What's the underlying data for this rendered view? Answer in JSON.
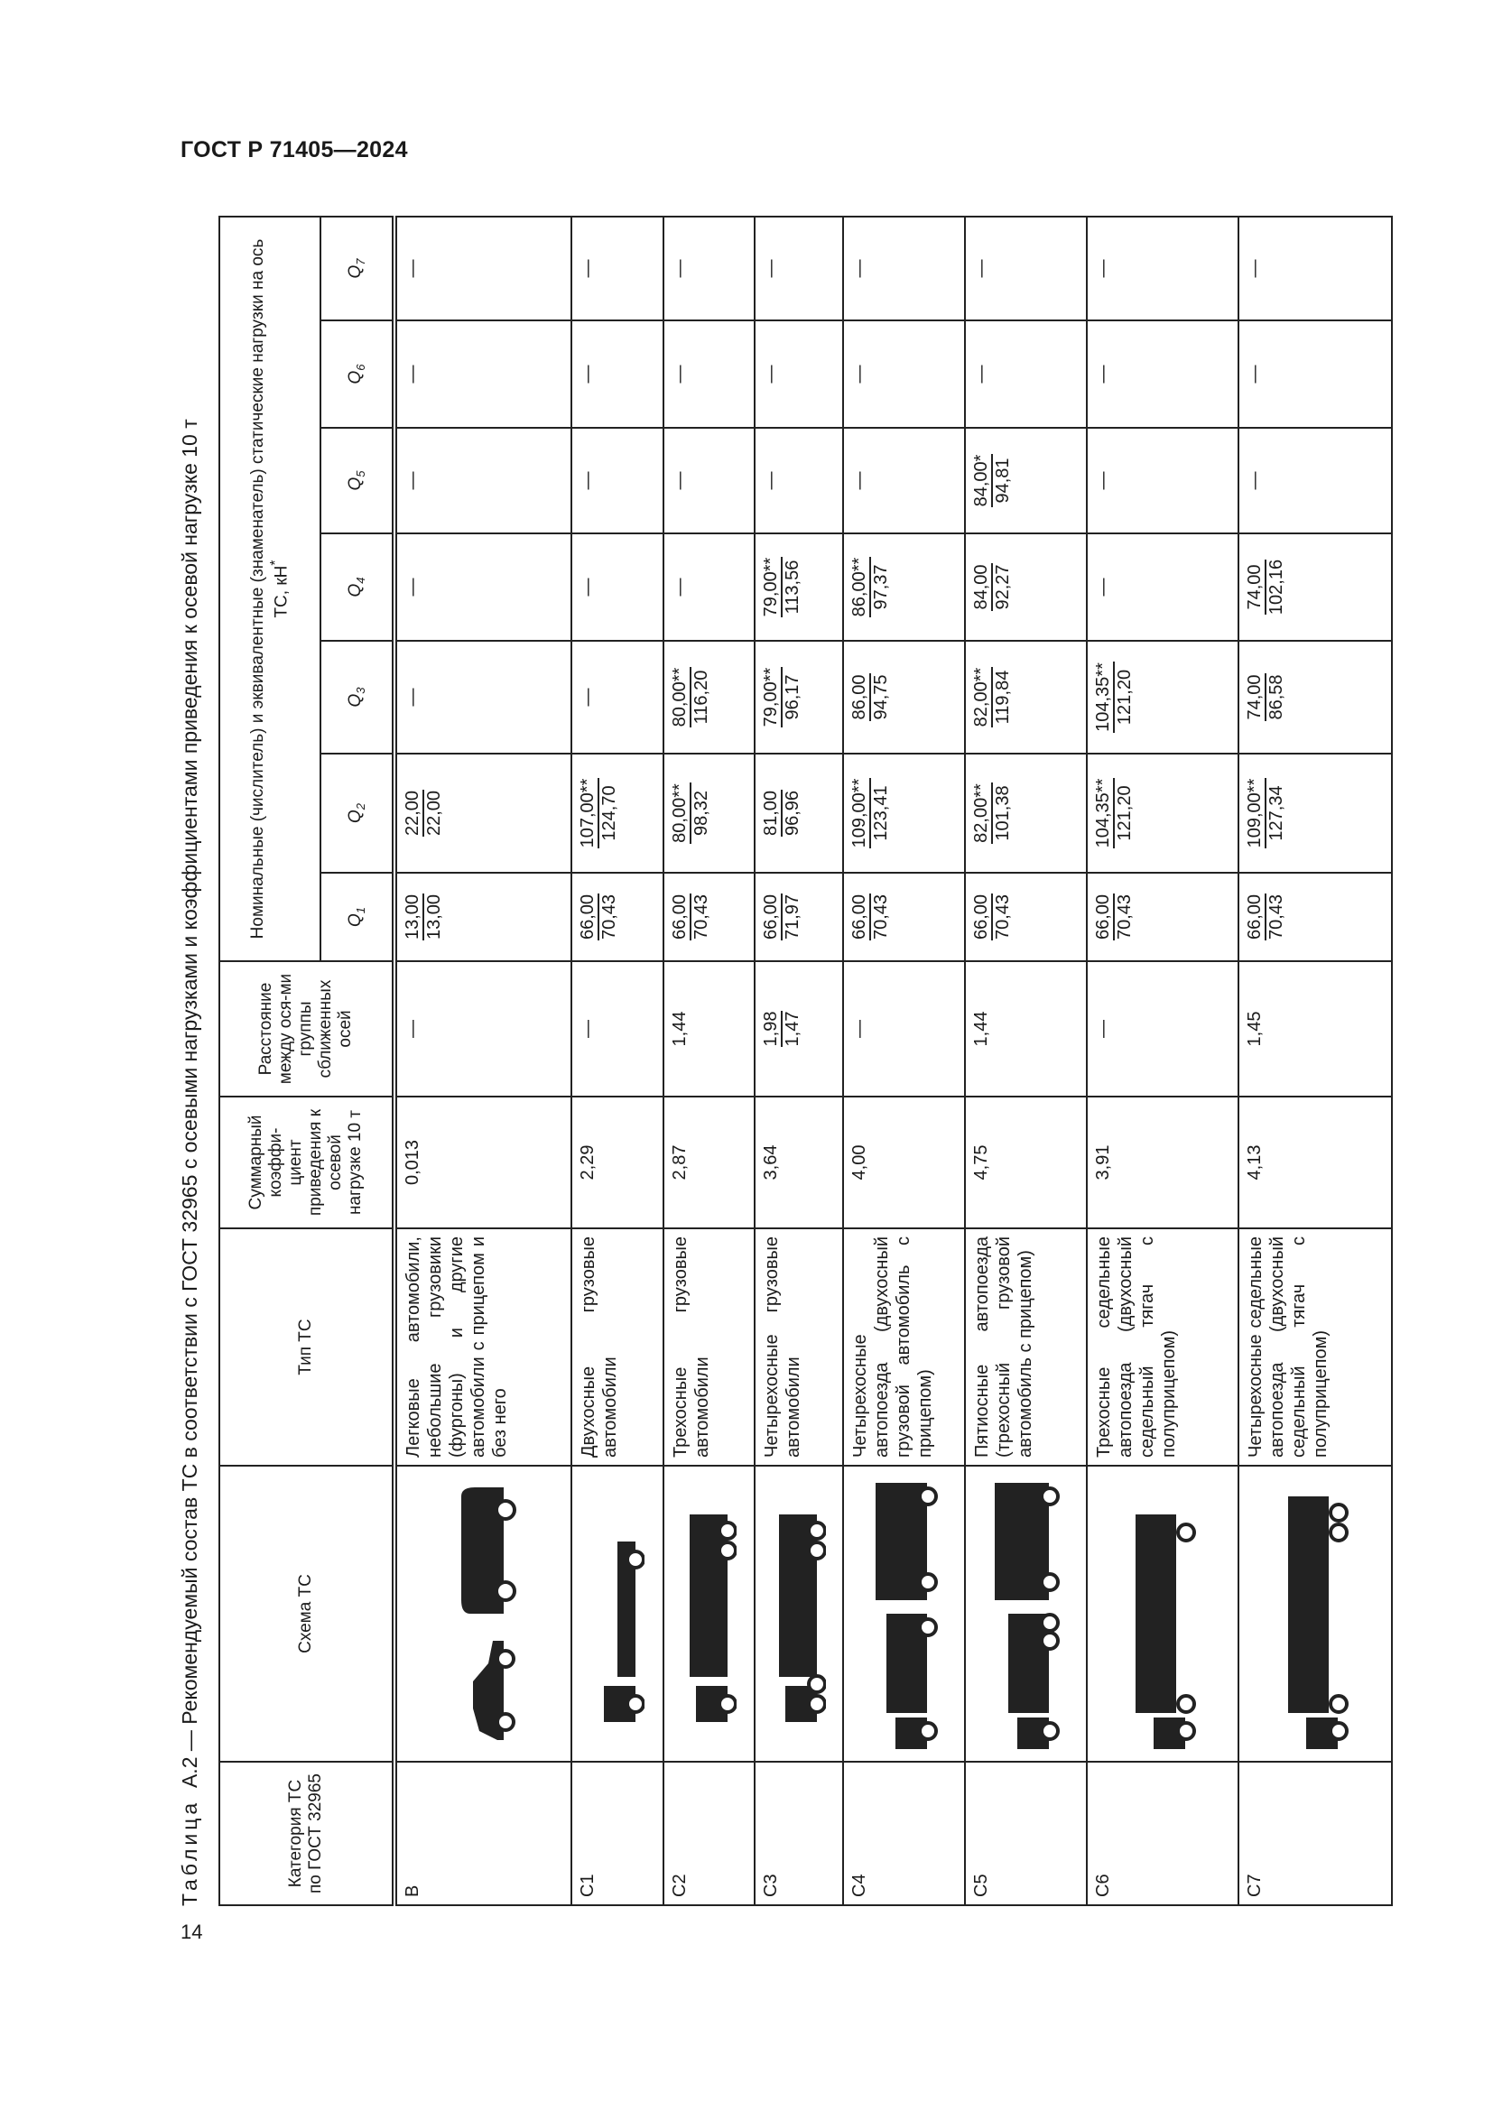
{
  "document": {
    "header": "ГОСТ Р 71405—2024",
    "page_number": "14"
  },
  "table": {
    "caption_label": "Таблица",
    "caption_text": "А.2 — Рекомендуемый состав ТС в соответствии с ГОСТ 32965 с осевыми нагрузками и коэффициентами приведения к осевой нагрузке 10 т",
    "headers": {
      "category": "Категория ТС по ГОСТ 32965",
      "scheme": "Схема ТС",
      "type": "Тип ТС",
      "coef": "Суммарный коэффи-циент приведения к осевой нагрузке 10 т",
      "distance": "Расстояние между ося-ми группы сближенных осей",
      "loads": "Номинальные (числитель) и эквивалентные (знаменатель) статические нагрузки на ось ТС, кН",
      "loads_footnote": "*",
      "q": [
        "Q",
        "Q",
        "Q",
        "Q",
        "Q",
        "Q",
        "Q"
      ],
      "q_sub": [
        "1",
        "2",
        "3",
        "4",
        "5",
        "6",
        "7"
      ]
    },
    "rows": [
      {
        "category": "В",
        "icon": "car-and-van-icon",
        "type": "Легковые автомобили, небольшие грузовики (фургоны) и другие автомобили с прицепом и без него",
        "coef": "0,013",
        "distance": {
          "text": "—"
        },
        "q": [
          {
            "n": "13,00",
            "d": "13,00"
          },
          {
            "n": "22,00",
            "d": "22,00"
          },
          {
            "t": "—"
          },
          {
            "t": "—"
          },
          {
            "t": "—"
          },
          {
            "t": "—"
          },
          {
            "t": "—"
          }
        ]
      },
      {
        "category": "С1",
        "icon": "two-axle-truck-icon",
        "type": "Двухосные грузовые автомобили",
        "coef": "2,29",
        "distance": {
          "text": "—"
        },
        "q": [
          {
            "n": "66,00",
            "d": "70,43"
          },
          {
            "n": "107,00**",
            "d": "124,70"
          },
          {
            "t": "—"
          },
          {
            "t": "—"
          },
          {
            "t": "—"
          },
          {
            "t": "—"
          },
          {
            "t": "—"
          }
        ]
      },
      {
        "category": "С2",
        "icon": "three-axle-truck-icon",
        "type": "Трехосные грузовые автомобили",
        "coef": "2,87",
        "distance": {
          "text": "1,44"
        },
        "q": [
          {
            "n": "66,00",
            "d": "70,43"
          },
          {
            "n": "80,00**",
            "d": "98,32"
          },
          {
            "n": "80,00**",
            "d": "116,20"
          },
          {
            "t": "—"
          },
          {
            "t": "—"
          },
          {
            "t": "—"
          },
          {
            "t": "—"
          }
        ]
      },
      {
        "category": "С3",
        "icon": "four-axle-truck-icon",
        "type": "Четырехосные грузовые автомобили",
        "coef": "3,64",
        "distance": {
          "n": "1,98",
          "d": "1,47"
        },
        "q": [
          {
            "n": "66,00",
            "d": "71,97"
          },
          {
            "n": "81,00",
            "d": "96,96"
          },
          {
            "n": "79,00**",
            "d": "96,17"
          },
          {
            "n": "79,00**",
            "d": "113,56"
          },
          {
            "t": "—"
          },
          {
            "t": "—"
          },
          {
            "t": "—"
          }
        ]
      },
      {
        "category": "С4",
        "icon": "truck-with-trailer-icon",
        "type": "Четырехосные автопоезда (двухосный грузовой автомобиль с прицепом)",
        "coef": "4,00",
        "distance": {
          "text": "—"
        },
        "q": [
          {
            "n": "66,00",
            "d": "70,43"
          },
          {
            "n": "109,00**",
            "d": "123,41"
          },
          {
            "n": "86,00",
            "d": "94,75"
          },
          {
            "n": "86,00**",
            "d": "97,37"
          },
          {
            "t": "—"
          },
          {
            "t": "—"
          },
          {
            "t": "—"
          }
        ]
      },
      {
        "category": "С5",
        "icon": "five-axle-road-train-icon",
        "type": "Пятиосные автопоезда (трехосный грузовой автомобиль с прицепом)",
        "coef": "4,75",
        "distance": {
          "text": "1,44"
        },
        "q": [
          {
            "n": "66,00",
            "d": "70,43"
          },
          {
            "n": "82,00**",
            "d": "101,38"
          },
          {
            "n": "82,00**",
            "d": "119,84"
          },
          {
            "n": "84,00",
            "d": "92,27"
          },
          {
            "n": "84,00*",
            "d": "94,81"
          },
          {
            "t": "—"
          },
          {
            "t": "—"
          }
        ]
      },
      {
        "category": "С6",
        "icon": "three-axle-semitrailer-icon",
        "type": "Трехосные седельные автопоезда (двухосный седельный тягач с полуприцепом)",
        "coef": "3,91",
        "distance": {
          "text": "—"
        },
        "q": [
          {
            "n": "66,00",
            "d": "70,43"
          },
          {
            "n": "104,35**",
            "d": "121,20"
          },
          {
            "n": "104,35**",
            "d": "121,20"
          },
          {
            "t": "—"
          },
          {
            "t": "—"
          },
          {
            "t": "—"
          },
          {
            "t": "—"
          }
        ]
      },
      {
        "category": "С7",
        "icon": "four-axle-semitrailer-icon",
        "type": "Четырехосные седельные автопоезда (двухосный седельный тягач с полуприцепом)",
        "coef": "4,13",
        "distance": {
          "text": "1,45"
        },
        "q": [
          {
            "n": "66,00",
            "d": "70,43"
          },
          {
            "n": "109,00**",
            "d": "127,34"
          },
          {
            "n": "74,00",
            "d": "86,58"
          },
          {
            "n": "74,00",
            "d": "102,16"
          },
          {
            "t": "—"
          },
          {
            "t": "—"
          },
          {
            "t": "—"
          }
        ]
      }
    ]
  }
}
